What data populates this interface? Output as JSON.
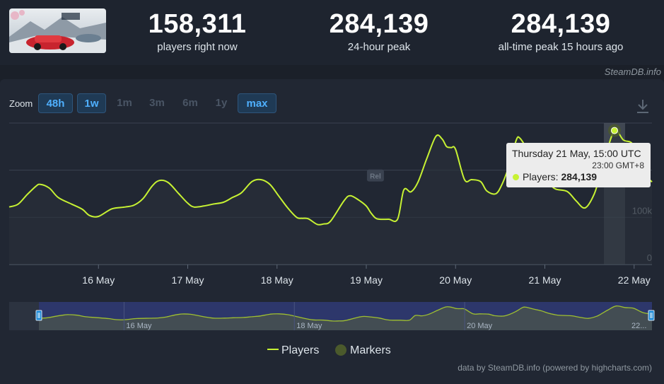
{
  "stats": [
    {
      "value": "158,311",
      "label": "players right now"
    },
    {
      "value": "284,139",
      "label": "24-hour peak"
    },
    {
      "value": "284,139",
      "label": "all-time peak 15 hours ago"
    }
  ],
  "brand": "SteamDB.info",
  "zoom": {
    "label": "Zoom",
    "buttons": [
      {
        "label": "48h",
        "active": true
      },
      {
        "label": "1w",
        "active": true
      },
      {
        "label": "1m",
        "active": false
      },
      {
        "label": "3m",
        "active": false
      },
      {
        "label": "6m",
        "active": false
      },
      {
        "label": "1y",
        "active": false
      },
      {
        "label": "max",
        "active": true
      }
    ]
  },
  "tooltip": {
    "title": "Thursday 21 May, 15:00 UTC",
    "subtitle": "23:00 GMT+8",
    "series_label": "Players:",
    "value": "284,139"
  },
  "marker_label": "Rel",
  "legend": {
    "players": "Players",
    "markers": "Markers"
  },
  "credit": "data by SteamDB.info (powered by highcharts.com)",
  "colors": {
    "line": "#c7f233",
    "marker": "#4b5a2c",
    "accent": "#4fb0ff"
  },
  "chart_data": {
    "type": "line",
    "title": "",
    "xlabel": "",
    "ylabel": "",
    "x_ticks": [
      "16 May",
      "17 May",
      "18 May",
      "19 May",
      "20 May",
      "21 May",
      "22 May"
    ],
    "y_ticks": [
      "0",
      "100k"
    ],
    "ylim": [
      0,
      300000
    ],
    "grid": true,
    "legend_position": "bottom-center",
    "series": [
      {
        "name": "Players",
        "x_days": [
          15.0,
          15.1,
          15.2,
          15.3,
          15.35,
          15.45,
          15.55,
          15.7,
          15.82,
          15.9,
          16.0,
          16.15,
          16.3,
          16.4,
          16.5,
          16.6,
          16.68,
          16.78,
          16.9,
          17.0,
          17.07,
          17.18,
          17.28,
          17.4,
          17.5,
          17.6,
          17.72,
          17.82,
          17.92,
          18.02,
          18.12,
          18.22,
          18.28,
          18.35,
          18.45,
          18.52,
          18.6,
          18.75,
          18.82,
          18.92,
          19.0,
          19.05,
          19.1,
          19.15,
          19.25,
          19.35,
          19.42,
          19.5,
          19.58,
          19.68,
          19.78,
          19.85,
          19.9,
          19.95,
          20.0,
          20.1,
          20.18,
          20.28,
          20.35,
          20.45,
          20.52,
          20.6,
          20.68,
          20.72,
          20.8,
          20.9,
          20.98,
          21.05,
          21.12,
          21.25,
          21.35,
          21.45,
          21.55,
          21.62,
          21.68,
          21.78,
          21.88,
          21.98,
          22.05,
          22.1,
          22.2
        ],
        "values": [
          122000,
          128000,
          148000,
          166000,
          170000,
          162000,
          142000,
          128000,
          117000,
          104000,
          102000,
          118000,
          122000,
          126000,
          140000,
          166000,
          178000,
          174000,
          150000,
          130000,
          122000,
          124000,
          128000,
          132000,
          142000,
          152000,
          176000,
          180000,
          170000,
          145000,
          120000,
          100000,
          98000,
          97000,
          85000,
          86000,
          92000,
          135000,
          146000,
          136000,
          124000,
          110000,
          99000,
          96000,
          96000,
          96000,
          158000,
          154000,
          175000,
          226000,
          272000,
          266000,
          250000,
          248000,
          244000,
          180000,
          180000,
          176000,
          156000,
          150000,
          170000,
          210000,
          264000,
          268000,
          246000,
          220000,
          190000,
          172000,
          160000,
          155000,
          135000,
          120000,
          148000,
          190000,
          230000,
          284139,
          264000,
          256000,
          218000,
          195000,
          175000
        ],
        "x_range": [
          15.0,
          22.2
        ]
      }
    ],
    "markers": [
      {
        "x_day": 19.15,
        "label": "Rel"
      }
    ]
  }
}
